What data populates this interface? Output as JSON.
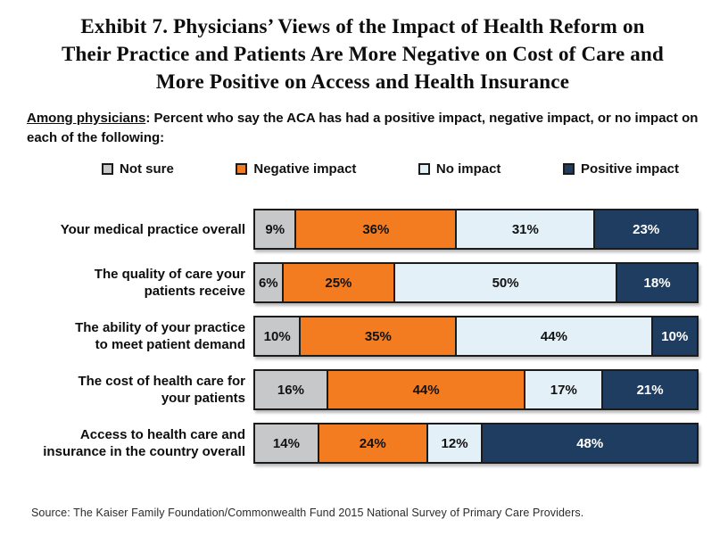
{
  "header": {
    "title_line1": "Exhibit 7. Physicians’ Views of the Impact of Health Reform on",
    "title_line2": "Their Practice and Patients Are More Negative on Cost of Care and",
    "title_line3": "More Positive on Access and Health Insurance",
    "subtitle_lead": "Among physicians",
    "subtitle_rest": ": Percent who say the ACA has had a positive impact, negative impact, or no impact on each of the following:"
  },
  "legend": [
    {
      "label": "Not sure",
      "color": "#C7C8CA"
    },
    {
      "label": "Negative impact",
      "color": "#F47C20"
    },
    {
      "label": "No impact",
      "color": "#E3F0F8"
    },
    {
      "label": "Positive impact",
      "color": "#1E3D60"
    }
  ],
  "chart_data": {
    "type": "bar",
    "orientation": "horizontal",
    "stacked": true,
    "unit": "%",
    "xlim": [
      0,
      100
    ],
    "grid": false,
    "legend_position": "top",
    "categories": [
      "Your medical practice overall",
      "The quality of care your\npatients receive",
      "The ability of your practice\nto meet patient demand",
      "The cost of health care for\nyour patients",
      "Access to health care and\ninsurance in the country overall"
    ],
    "series": [
      {
        "name": "Not sure",
        "color": "#C7C8CA",
        "text_color": "#121212",
        "values": [
          9,
          6,
          10,
          16,
          14
        ]
      },
      {
        "name": "Negative impact",
        "color": "#F47C20",
        "text_color": "#121212",
        "values": [
          36,
          25,
          35,
          44,
          24
        ]
      },
      {
        "name": "No impact",
        "color": "#E3F0F8",
        "text_color": "#121212",
        "values": [
          31,
          50,
          44,
          17,
          12
        ]
      },
      {
        "name": "Positive impact",
        "color": "#1E3D60",
        "text_color": "#ffffff",
        "values": [
          23,
          18,
          10,
          21,
          48
        ]
      }
    ]
  },
  "footer": {
    "source": "Source: The Kaiser Family Foundation/Commonwealth Fund 2015 National Survey of Primary Care Providers."
  }
}
